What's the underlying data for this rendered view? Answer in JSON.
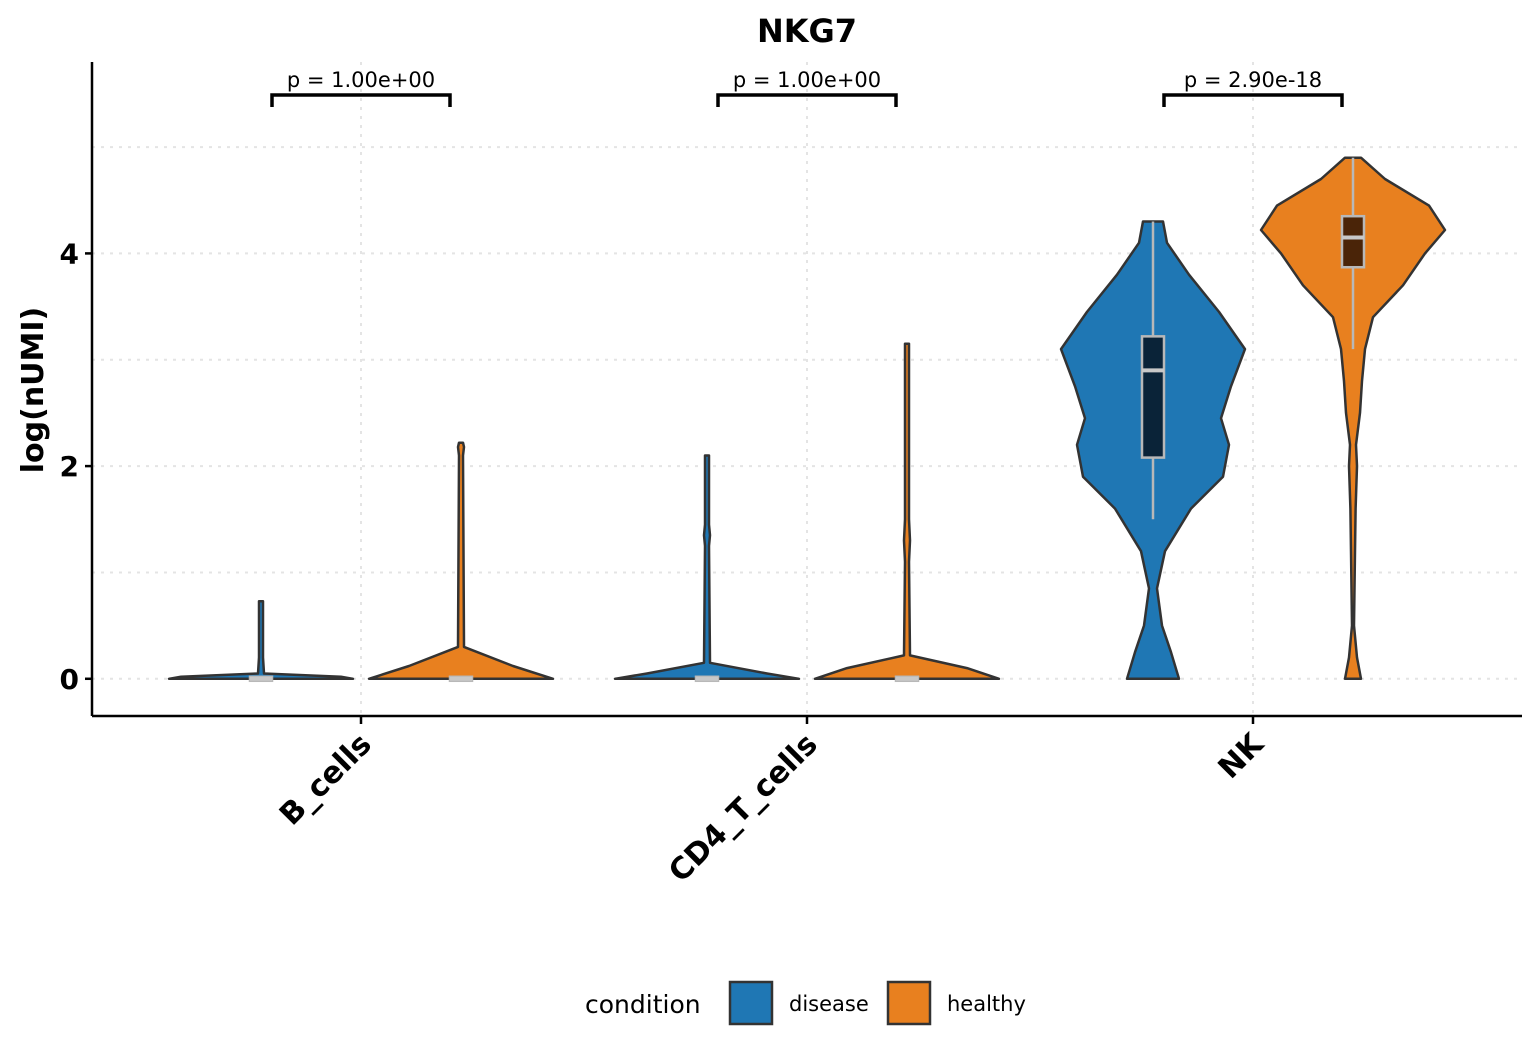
{
  "chart_data": {
    "type": "violin",
    "title": "NKG7",
    "xlabel": "",
    "ylabel": "log(nUMI)",
    "ylim": [
      -0.35,
      5.8
    ],
    "yticks": [
      0,
      2,
      4
    ],
    "grid": true,
    "legend_position": "bottom",
    "categories": [
      "B_cells",
      "CD4_T_cells",
      "NK"
    ],
    "legend": {
      "title": "condition",
      "entries": [
        {
          "name": "disease",
          "color": "#1f77b4"
        },
        {
          "name": "healthy",
          "color": "#e8801f"
        }
      ]
    },
    "pvalues": [
      {
        "category": "B_cells",
        "label": "p = 1.00e+00"
      },
      {
        "category": "CD4_T_cells",
        "label": "p = 1.00e+00"
      },
      {
        "category": "NK",
        "label": "p = 2.90e-18"
      }
    ],
    "series": [
      {
        "name": "disease",
        "color": "#1f77b4",
        "box_color": "#0a2338",
        "groups": [
          {
            "category": "B_cells",
            "ymax": 0.73,
            "box": {
              "q1": 0,
              "median": 0,
              "q3": 0
            },
            "profile": [
              [
                0,
                0.46
              ],
              [
                0.02,
                0.4
              ],
              [
                0.05,
                0.015
              ],
              [
                0.2,
                0.01
              ],
              [
                0.73,
                0.01
              ]
            ]
          },
          {
            "category": "CD4_T_cells",
            "ymax": 2.1,
            "box": {
              "q1": 0,
              "median": 0,
              "q3": 0
            },
            "profile": [
              [
                0,
                0.46
              ],
              [
                0.05,
                0.3
              ],
              [
                0.15,
                0.015
              ],
              [
                1.25,
                0.01
              ],
              [
                1.35,
                0.015
              ],
              [
                1.45,
                0.01
              ],
              [
                2.1,
                0.01
              ]
            ]
          },
          {
            "category": "NK",
            "ymax": 4.3,
            "box": {
              "q1": 2.08,
              "median": 2.9,
              "q3": 3.22
            },
            "whisker": [
              1.5,
              4.3
            ],
            "profile": [
              [
                0,
                0.13
              ],
              [
                0.25,
                0.09
              ],
              [
                0.5,
                0.045
              ],
              [
                0.85,
                0.02
              ],
              [
                1.2,
                0.06
              ],
              [
                1.6,
                0.19
              ],
              [
                1.9,
                0.35
              ],
              [
                2.2,
                0.38
              ],
              [
                2.45,
                0.34
              ],
              [
                2.75,
                0.39
              ],
              [
                3.1,
                0.46
              ],
              [
                3.45,
                0.33
              ],
              [
                3.8,
                0.18
              ],
              [
                4.1,
                0.07
              ],
              [
                4.3,
                0.05
              ]
            ]
          }
        ]
      },
      {
        "name": "healthy",
        "color": "#e8801f",
        "box_color": "#4a2408",
        "groups": [
          {
            "category": "B_cells",
            "ymax": 2.22,
            "box": {
              "q1": 0,
              "median": 0,
              "q3": 0
            },
            "profile": [
              [
                0,
                0.46
              ],
              [
                0.12,
                0.26
              ],
              [
                0.3,
                0.015
              ],
              [
                2.1,
                0.01
              ],
              [
                2.18,
                0.015
              ],
              [
                2.22,
                0.01
              ]
            ]
          },
          {
            "category": "CD4_T_cells",
            "ymax": 3.15,
            "box": {
              "q1": 0,
              "median": 0,
              "q3": 0
            },
            "profile": [
              [
                0,
                0.46
              ],
              [
                0.1,
                0.3
              ],
              [
                0.22,
                0.015
              ],
              [
                1.1,
                0.01
              ],
              [
                1.3,
                0.015
              ],
              [
                1.5,
                0.01
              ],
              [
                3.15,
                0.01
              ]
            ]
          },
          {
            "category": "NK",
            "ymax": 4.9,
            "box": {
              "q1": 3.87,
              "median": 4.15,
              "q3": 4.35
            },
            "whisker": [
              3.1,
              4.9
            ],
            "profile": [
              [
                0,
                0.04
              ],
              [
                0.2,
                0.02
              ],
              [
                0.5,
                0.005
              ],
              [
                1.2,
                0.01
              ],
              [
                1.6,
                0.013
              ],
              [
                2.0,
                0.02
              ],
              [
                2.2,
                0.015
              ],
              [
                2.5,
                0.035
              ],
              [
                2.8,
                0.045
              ],
              [
                3.1,
                0.06
              ],
              [
                3.4,
                0.1
              ],
              [
                3.7,
                0.25
              ],
              [
                4.0,
                0.36
              ],
              [
                4.22,
                0.46
              ],
              [
                4.45,
                0.38
              ],
              [
                4.7,
                0.16
              ],
              [
                4.9,
                0.04
              ]
            ]
          }
        ]
      }
    ]
  }
}
